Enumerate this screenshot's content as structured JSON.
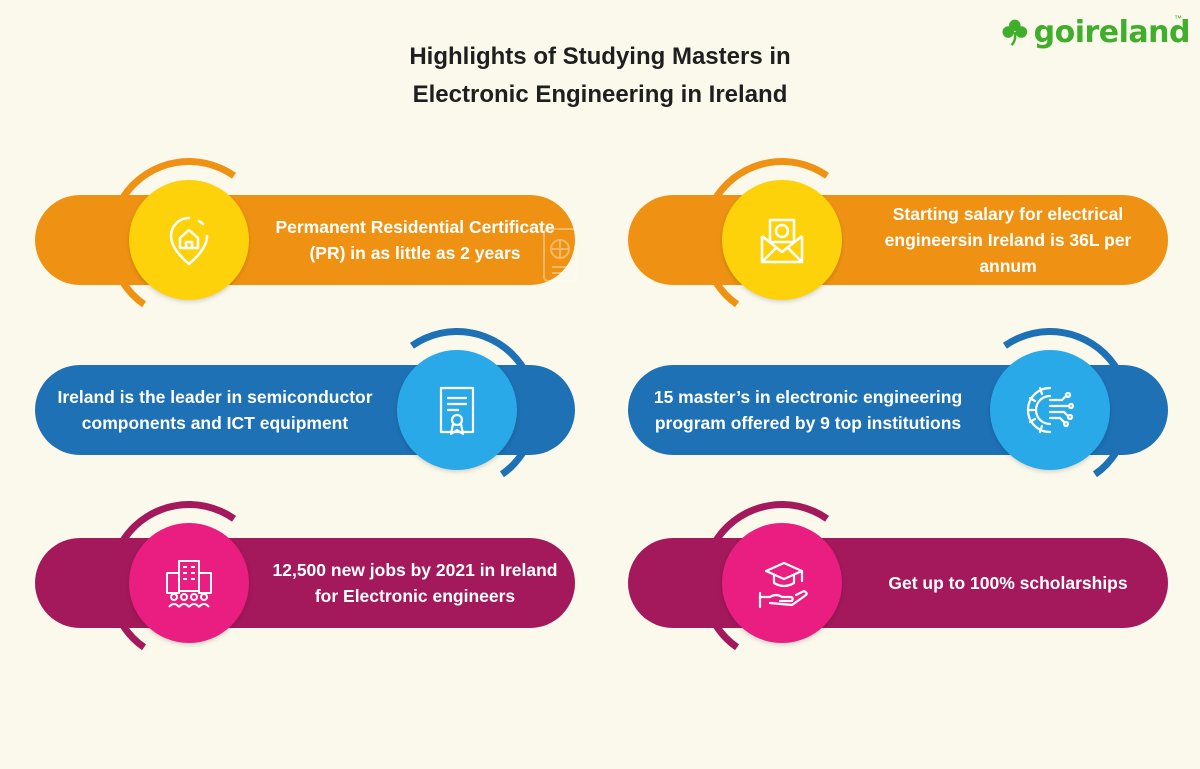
{
  "title": {
    "line1": "Highlights of Studying Masters in",
    "line2": "Electronic Engineering in Ireland"
  },
  "logo": {
    "text": "goireland",
    "tm": "™"
  },
  "cards": [
    {
      "text": "Permanent Residential Certificate (PR) in as little as 2 years",
      "icon": "home-location-icon",
      "color": "#ef9213"
    },
    {
      "text": "Starting salary for electrical engineersin Ireland is 36L per annum",
      "icon": "money-envelope-icon",
      "color": "#ef9213"
    },
    {
      "text": "Ireland is the leader in semiconductor components and ICT equipment",
      "icon": "certificate-icon",
      "color": "#1e71b5"
    },
    {
      "text": "15 master’s in electronic engineering program offered by 9 top institutions",
      "icon": "gear-circuit-icon",
      "color": "#1e71b5"
    },
    {
      "text": "12,500 new jobs by 2021 in Ireland for Electronic engineers",
      "icon": "office-building-people-icon",
      "color": "#a3195b"
    },
    {
      "text": "Get up to 100% scholarships",
      "icon": "graduation-cap-hand-icon",
      "color": "#a3195b"
    }
  ]
}
